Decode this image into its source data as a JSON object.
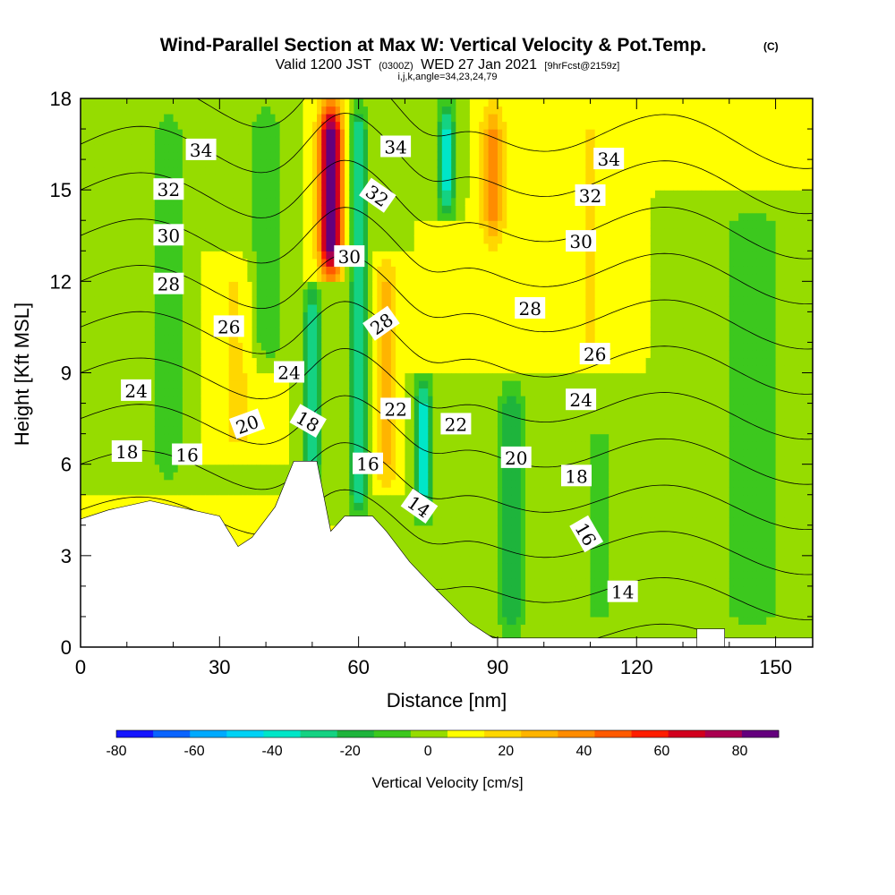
{
  "chart_data": {
    "type": "heatmap",
    "title": "Wind-Parallel Section at Max W: Vertical Velocity & Pot.Temp.",
    "title_mark": "(C)",
    "subtitle_main": "Valid 1200 JST",
    "subtitle_utc": "(0300Z)",
    "subtitle_date": "WED 27 Jan 2021",
    "subtitle_fcst": "[9hrFcst@2159z]",
    "subtitle_line2": "i,j,k,angle=34,23,24,79",
    "xlabel": "Distance [nm]",
    "ylabel": "Height [Kft MSL]",
    "xlim": [
      0,
      158
    ],
    "ylim": [
      0,
      18
    ],
    "x_ticks": [
      "0",
      "30",
      "60",
      "90",
      "120",
      "150"
    ],
    "x_tick_values": [
      0,
      30,
      60,
      90,
      120,
      150
    ],
    "y_ticks": [
      "0",
      "3",
      "6",
      "9",
      "12",
      "15",
      "18"
    ],
    "y_tick_values": [
      0,
      3,
      6,
      9,
      12,
      15,
      18
    ],
    "colorbar": {
      "label": "Vertical Velocity [cm/s]",
      "tick_labels": [
        "-80",
        "-60",
        "-40",
        "-20",
        "0",
        "20",
        "40",
        "60",
        "80"
      ],
      "tick_values": [
        -80,
        -60,
        -40,
        -20,
        0,
        20,
        40,
        60,
        80
      ],
      "range": [
        -80,
        90
      ],
      "colors": [
        "#1515ff",
        "#0a64ff",
        "#00aaff",
        "#00d2f5",
        "#00e6c8",
        "#14d282",
        "#1eb43c",
        "#3cc81e",
        "#96dc00",
        "#ffff00",
        "#ffd700",
        "#ffb400",
        "#ff8c00",
        "#ff5a00",
        "#ff1e00",
        "#d2001e",
        "#aa0050",
        "#64007d"
      ]
    },
    "terrain_profile": [
      [
        0,
        4.2
      ],
      [
        6,
        4.5
      ],
      [
        15,
        4.8
      ],
      [
        30,
        4.3
      ],
      [
        34,
        3.3
      ],
      [
        37,
        3.6
      ],
      [
        42,
        4.6
      ],
      [
        46,
        6.1
      ],
      [
        51,
        6.1
      ],
      [
        54,
        3.8
      ],
      [
        57,
        4.3
      ],
      [
        60,
        4.3
      ],
      [
        63,
        4.3
      ],
      [
        66,
        3.8
      ],
      [
        68,
        3.4
      ],
      [
        71,
        2.8
      ],
      [
        76,
        2.0
      ],
      [
        80,
        1.4
      ],
      [
        84,
        0.8
      ],
      [
        87,
        0.5
      ],
      [
        89,
        0.3
      ],
      [
        150,
        0.3
      ],
      [
        158,
        0.3
      ]
    ],
    "terrain_bump": [
      [
        133,
        0.6
      ],
      [
        139,
        0.6
      ]
    ],
    "velocity_features": [
      {
        "x": 54,
        "y_from": 12,
        "y_to": 18,
        "w": 85,
        "sigma": 2.5
      },
      {
        "x": 50,
        "y_from": 5,
        "y_to": 12,
        "w": -40,
        "sigma": 1.8
      },
      {
        "x": 60,
        "y_from": 4,
        "y_to": 18,
        "w": -35,
        "sigma": 2.0
      },
      {
        "x": 66,
        "y_from": 5,
        "y_to": 13,
        "w": 20,
        "sigma": 2.5
      },
      {
        "x": 74,
        "y_from": 4,
        "y_to": 9,
        "w": -45,
        "sigma": 2.0
      },
      {
        "x": 79,
        "y_from": 14,
        "y_to": 18,
        "w": -45,
        "sigma": 2.0
      },
      {
        "x": 89,
        "y_from": 13,
        "y_to": 18,
        "w": 30,
        "sigma": 2.5
      },
      {
        "x": 93,
        "y_from": 0,
        "y_to": 9,
        "w": -25,
        "sigma": 3.0
      },
      {
        "x": 34,
        "y_from": 6,
        "y_to": 13,
        "w": 12,
        "sigma": 5.0
      },
      {
        "x": 19,
        "y_from": 5,
        "y_to": 18,
        "w": -15,
        "sigma": 4.0
      },
      {
        "x": 40,
        "y_from": 9,
        "y_to": 18,
        "w": -18,
        "sigma": 4.0
      },
      {
        "x": 110,
        "y_from": 9,
        "y_to": 18,
        "w": 10,
        "sigma": 6.0
      },
      {
        "x": 145,
        "y_from": 0,
        "y_to": 15,
        "w": -12,
        "sigma": 10.0
      },
      {
        "x": 112,
        "y_from": 0,
        "y_to": 8,
        "w": -10,
        "sigma": 8.0
      }
    ],
    "theta_levels": [
      12,
      14,
      16,
      18,
      20,
      22,
      24,
      26,
      28,
      30,
      32,
      34
    ],
    "contour_labels": [
      {
        "text": "34",
        "x": 26,
        "y": 16.3,
        "angle": 0
      },
      {
        "text": "34",
        "x": 68,
        "y": 16.4,
        "angle": 0
      },
      {
        "text": "34",
        "x": 114,
        "y": 16.0,
        "angle": 0
      },
      {
        "text": "32",
        "x": 19,
        "y": 15.0,
        "angle": 0
      },
      {
        "text": "32",
        "x": 64,
        "y": 14.8,
        "angle": 35
      },
      {
        "text": "32",
        "x": 110,
        "y": 14.8,
        "angle": 0
      },
      {
        "text": "30",
        "x": 19,
        "y": 13.5,
        "angle": 0
      },
      {
        "text": "30",
        "x": 58,
        "y": 12.8,
        "angle": 0
      },
      {
        "text": "30",
        "x": 108,
        "y": 13.3,
        "angle": 0
      },
      {
        "text": "28",
        "x": 19,
        "y": 11.9,
        "angle": 0
      },
      {
        "text": "28",
        "x": 65,
        "y": 10.6,
        "angle": -35
      },
      {
        "text": "28",
        "x": 97,
        "y": 11.1,
        "angle": 0
      },
      {
        "text": "26",
        "x": 32,
        "y": 10.5,
        "angle": 0
      },
      {
        "text": "26",
        "x": 111,
        "y": 9.6,
        "angle": 0
      },
      {
        "text": "24",
        "x": 12,
        "y": 8.4,
        "angle": 0
      },
      {
        "text": "24",
        "x": 45,
        "y": 9.0,
        "angle": 0
      },
      {
        "text": "24",
        "x": 108,
        "y": 8.1,
        "angle": 0
      },
      {
        "text": "22",
        "x": 68,
        "y": 7.8,
        "angle": 0
      },
      {
        "text": "22",
        "x": 81,
        "y": 7.3,
        "angle": 0
      },
      {
        "text": "20",
        "x": 36,
        "y": 7.3,
        "angle": -20
      },
      {
        "text": "20",
        "x": 94,
        "y": 6.2,
        "angle": 0
      },
      {
        "text": "18",
        "x": 10,
        "y": 6.4,
        "angle": 0
      },
      {
        "text": "18",
        "x": 49,
        "y": 7.4,
        "angle": 30
      },
      {
        "text": "18",
        "x": 107,
        "y": 5.6,
        "angle": 0
      },
      {
        "text": "16",
        "x": 23,
        "y": 6.3,
        "angle": 0
      },
      {
        "text": "16",
        "x": 62,
        "y": 6.0,
        "angle": 0
      },
      {
        "text": "16",
        "x": 109,
        "y": 3.7,
        "angle": 60
      },
      {
        "text": "14",
        "x": 73,
        "y": 4.6,
        "angle": 35
      },
      {
        "text": "14",
        "x": 117,
        "y": 1.8,
        "angle": 0
      }
    ]
  }
}
